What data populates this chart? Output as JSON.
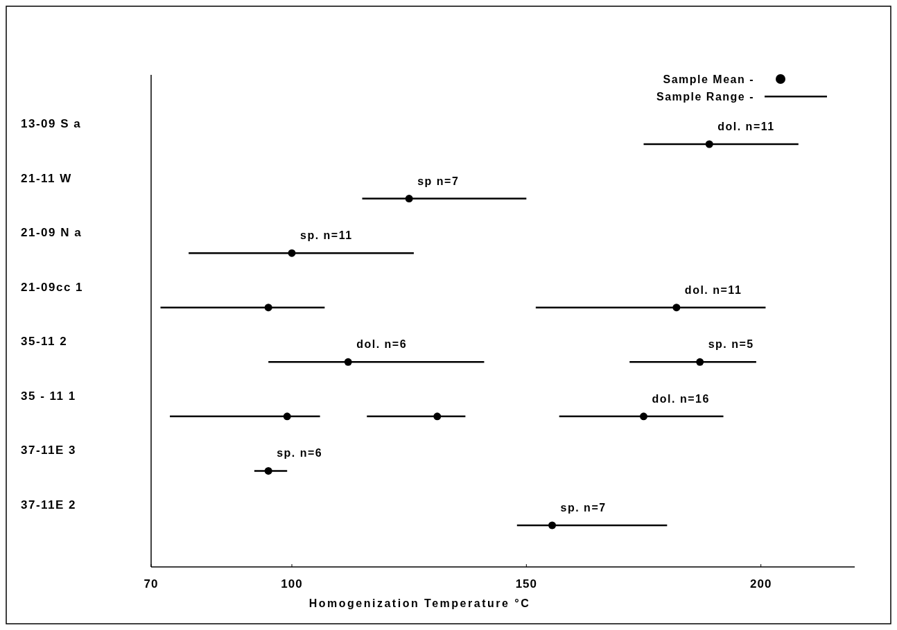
{
  "chart_data": {
    "type": "scatter",
    "orientation": "horizontal",
    "xlabel": "Homogenization Temperature °C",
    "categories": [
      "13-09 S a",
      "21-11 W",
      "21-09 N a",
      "21-09cc 1",
      "35-11  2",
      "35 - 11  1",
      "37-11E 3",
      "37-11E 2"
    ],
    "xlim": [
      70,
      220
    ],
    "xticks": [
      70,
      100,
      150,
      200
    ],
    "marker": "circle",
    "series": [
      {
        "color": "#000000",
        "values": [
          189,
          125,
          100,
          95,
          112,
          99,
          95,
          155.5
        ],
        "errors": [
          [
            175,
            208
          ],
          [
            115,
            150
          ],
          [
            78,
            126
          ],
          [
            72,
            107
          ],
          [
            95,
            141
          ],
          [
            74,
            106
          ],
          [
            92,
            99
          ],
          [
            148,
            180
          ]
        ]
      },
      {
        "color": "#000000",
        "values": [
          null,
          null,
          null,
          182,
          187,
          131,
          null,
          null
        ],
        "errors": [
          null,
          null,
          null,
          [
            152,
            201
          ],
          [
            172,
            199
          ],
          [
            116,
            137
          ],
          null,
          null
        ]
      },
      {
        "color": "#000000",
        "values": [
          null,
          null,
          null,
          null,
          null,
          175,
          null,
          null
        ],
        "errors": [
          null,
          null,
          null,
          null,
          null,
          [
            157,
            192
          ],
          null,
          null
        ]
      }
    ],
    "annotations": [
      "Sample Mean -",
      "Sample Range -",
      {
        "text": "dol. n=11",
        "x": 189,
        "y": "13-09 S a"
      },
      {
        "text": "sp n=7",
        "x": 125,
        "y": "21-11 W"
      },
      {
        "text": "sp. n=11",
        "x": 100,
        "y": "21-09 N a"
      },
      {
        "text": "dol. n=11",
        "x": 182,
        "y": "21-09cc 1"
      },
      {
        "text": "dol. n=6",
        "x": 112,
        "y": "35-11  2"
      },
      {
        "text": "sp. n=5",
        "x": 187,
        "y": "35-11  2"
      },
      {
        "text": "dol. n=16",
        "x": 175,
        "y": "35 - 11  1"
      },
      {
        "text": "sp. n=6",
        "x": 95,
        "y": "37-11E 3"
      },
      {
        "text": "sp. n=7",
        "x": 155.5,
        "y": "37-11E 2"
      }
    ]
  }
}
